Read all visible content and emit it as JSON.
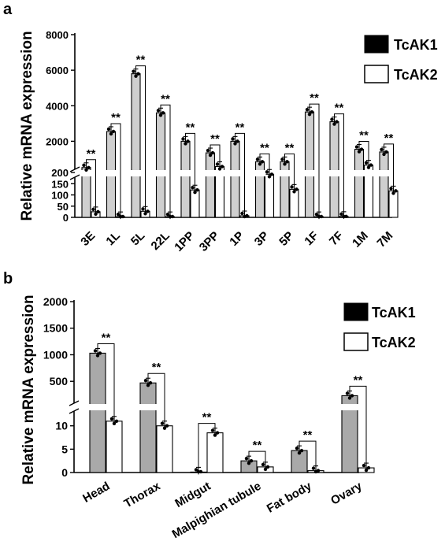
{
  "chart_data": [
    {
      "panel": "a",
      "type": "bar",
      "ylabel": "Relative mRNA expression",
      "categories": [
        "3E",
        "1L",
        "5L",
        "22L",
        "1PP",
        "3PP",
        "1P",
        "3P",
        "5P",
        "1F",
        "7F",
        "1M",
        "7M"
      ],
      "series": [
        {
          "name": "TcAK1",
          "values": [
            520,
            2550,
            5800,
            3600,
            2000,
            1350,
            2000,
            850,
            850,
            3650,
            3100,
            1550,
            1400
          ]
        },
        {
          "name": "TcAK2",
          "values": [
            25,
            3,
            27,
            3,
            122,
            580,
            7,
            192,
            125,
            3,
            4,
            660,
            118
          ]
        }
      ],
      "yticks_upper": [
        "2000",
        "4000",
        "6000",
        "8000"
      ],
      "yticks_lower": [
        "0",
        "50",
        "100",
        "150",
        "200"
      ],
      "y_break": [
        200,
        200
      ],
      "ylim": [
        0,
        8000
      ],
      "significance": "**",
      "legend_position": "top-right"
    },
    {
      "panel": "b",
      "type": "bar",
      "ylabel": "Relative mRNA expression",
      "categories": [
        "Head",
        "Thorax",
        "Midgut",
        "Malpighian tubule",
        "Fat body",
        "Ovary"
      ],
      "series": [
        {
          "name": "TcAK1",
          "values": [
            1030,
            470,
            0.1,
            2.5,
            4.7,
            230
          ]
        },
        {
          "name": "TcAK2",
          "values": [
            11,
            10,
            8.5,
            1.2,
            0.4,
            1.0
          ]
        }
      ],
      "yticks_upper": [
        "500",
        "1000",
        "1500",
        "2000"
      ],
      "yticks_lower": [
        "0",
        "5",
        "10"
      ],
      "y_break": [
        14,
        14
      ],
      "ylim": [
        0,
        2000
      ],
      "significance": "**",
      "legend_position": "top-right"
    }
  ]
}
